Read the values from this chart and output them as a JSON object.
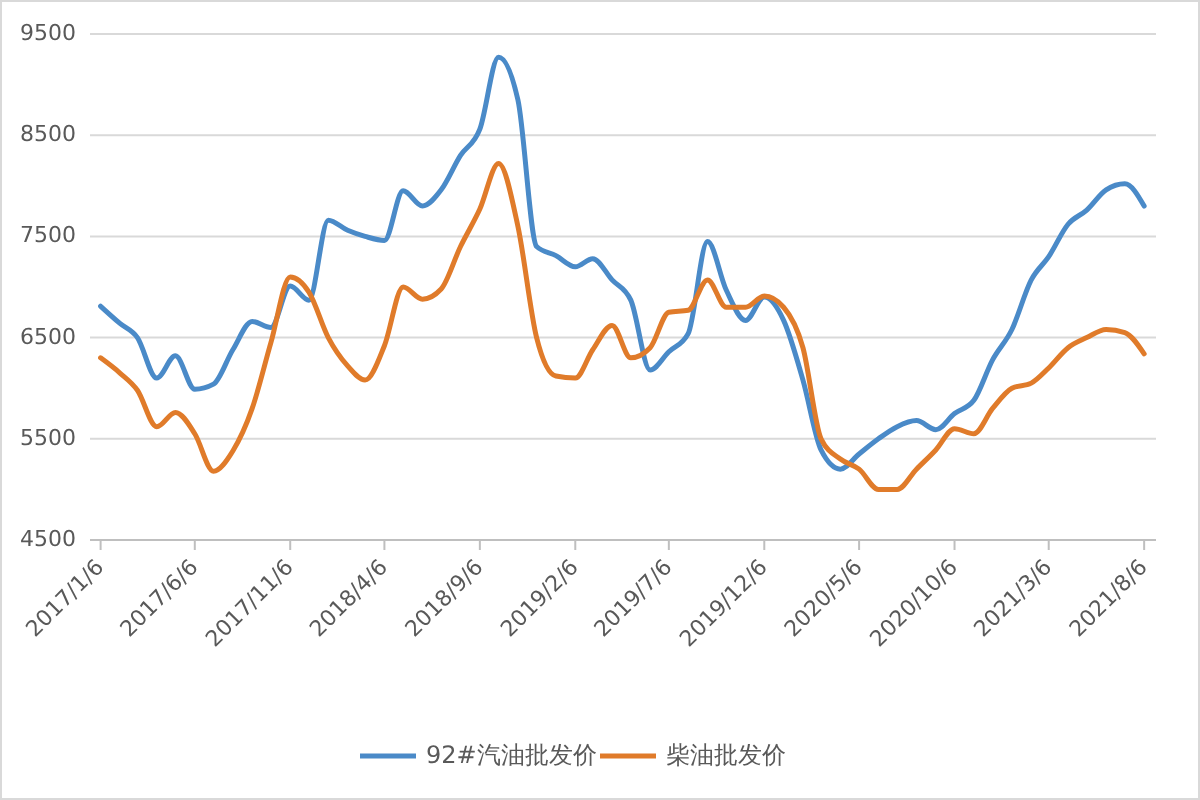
{
  "chart_data": {
    "type": "line",
    "x": [
      "2017-01-06",
      "2017-02-06",
      "2017-03-06",
      "2017-04-06",
      "2017-05-06",
      "2017-06-06",
      "2017-07-06",
      "2017-08-06",
      "2017-09-06",
      "2017-10-06",
      "2017-11-06",
      "2017-12-06",
      "2018-01-06",
      "2018-02-06",
      "2018-03-06",
      "2018-04-06",
      "2018-05-06",
      "2018-06-06",
      "2018-07-06",
      "2018-08-06",
      "2018-09-06",
      "2018-10-06",
      "2018-11-06",
      "2018-12-06",
      "2019-01-06",
      "2019-02-06",
      "2019-03-06",
      "2019-04-06",
      "2019-05-06",
      "2019-06-06",
      "2019-07-06",
      "2019-08-06",
      "2019-09-06",
      "2019-10-06",
      "2019-11-06",
      "2019-12-06",
      "2020-01-06",
      "2020-02-06",
      "2020-03-06",
      "2020-04-06",
      "2020-05-06",
      "2020-06-06",
      "2020-07-06",
      "2020-08-06",
      "2020-09-06",
      "2020-10-06",
      "2020-11-06",
      "2020-12-06",
      "2021-01-06",
      "2021-02-06",
      "2021-03-06",
      "2021-04-06",
      "2021-05-06",
      "2021-06-06",
      "2021-07-06",
      "2021-08-06"
    ],
    "series": [
      {
        "name": "92#汽油批发价",
        "color": "#4a8ac8",
        "values": [
          6810,
          6640,
          6500,
          6100,
          6320,
          5990,
          6040,
          6380,
          6660,
          6600,
          7010,
          6870,
          7660,
          7560,
          7500,
          7460,
          7950,
          7800,
          7960,
          8300,
          8560,
          9270,
          8850,
          7400,
          7310,
          7200,
          7280,
          7070,
          6870,
          6180,
          6360,
          6540,
          7450,
          6970,
          6670,
          6900,
          6670,
          6080,
          5390,
          5200,
          5350,
          5500,
          5620,
          5680,
          5590,
          5750,
          5880,
          6280,
          6580,
          7070,
          7300,
          7620,
          7760,
          7960,
          8020,
          7800
        ]
      },
      {
        "name": "柴油批发价",
        "color": "#e07b2a",
        "values": [
          6300,
          6150,
          5980,
          5620,
          5760,
          5550,
          5180,
          5380,
          5800,
          6450,
          7100,
          6950,
          6500,
          6220,
          6080,
          6420,
          7000,
          6880,
          6980,
          7400,
          7770,
          8220,
          7600,
          6500,
          6120,
          6100,
          6380,
          6620,
          6300,
          6400,
          6750,
          6770,
          7070,
          6800,
          6800,
          6910,
          6800,
          6400,
          5500,
          5300,
          5200,
          5000,
          5000,
          5200,
          5390,
          5600,
          5550,
          5800,
          6000,
          6050,
          6200,
          6400,
          6500,
          6580,
          6550,
          6340
        ]
      }
    ],
    "xlim": [
      "2016-12-20",
      "2021-08-25"
    ],
    "xticks": [
      {
        "value": "2017-01-06",
        "label": "2017/1/6"
      },
      {
        "value": "2017-06-06",
        "label": "2017/6/6"
      },
      {
        "value": "2017-11-06",
        "label": "2017/11/6"
      },
      {
        "value": "2018-04-06",
        "label": "2018/4/6"
      },
      {
        "value": "2018-09-06",
        "label": "2018/9/6"
      },
      {
        "value": "2019-02-06",
        "label": "2019/2/6"
      },
      {
        "value": "2019-07-06",
        "label": "2019/7/6"
      },
      {
        "value": "2019-12-06",
        "label": "2019/12/6"
      },
      {
        "value": "2020-05-06",
        "label": "2020/5/6"
      },
      {
        "value": "2020-10-06",
        "label": "2020/10/6"
      },
      {
        "value": "2021-03-06",
        "label": "2021/3/6"
      },
      {
        "value": "2021-08-06",
        "label": "2021/8/6"
      }
    ],
    "ylim": [
      4500,
      9500
    ],
    "yticks": [
      4500,
      5500,
      6500,
      7500,
      8500,
      9500
    ],
    "grid": "y",
    "legend": "bottom",
    "line_style": "solid",
    "marker": "none"
  }
}
